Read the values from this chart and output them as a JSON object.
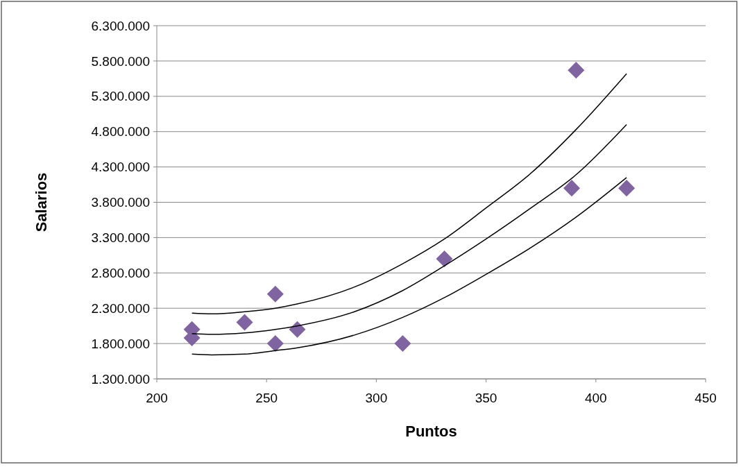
{
  "chart_data": {
    "type": "scatter",
    "xlabel": "Puntos",
    "ylabel": "Salarios",
    "xlim": [
      200,
      450
    ],
    "xticks": [
      200,
      250,
      300,
      350,
      400,
      450
    ],
    "ylim": [
      1300000,
      6300000
    ],
    "yticks": [
      {
        "value": 1300000,
        "label": "1.300.000"
      },
      {
        "value": 1800000,
        "label": "1.800.000"
      },
      {
        "value": 2300000,
        "label": "2.300.000"
      },
      {
        "value": 2800000,
        "label": "2.800.000"
      },
      {
        "value": 3300000,
        "label": "3.300.000"
      },
      {
        "value": 3800000,
        "label": "3.800.000"
      },
      {
        "value": 4300000,
        "label": "4.300.000"
      },
      {
        "value": 4800000,
        "label": "4.800.000"
      },
      {
        "value": 5300000,
        "label": "5.300.000"
      },
      {
        "value": 5800000,
        "label": "5.800.000"
      },
      {
        "value": 6300000,
        "label": "6.300.000"
      }
    ],
    "grid": "y",
    "series": [
      {
        "marker": "diamond",
        "color": "#8064a2",
        "x": [
          216,
          216,
          240,
          254,
          254,
          264,
          312,
          331,
          391,
          389,
          414
        ],
        "values": [
          2000000,
          1880000,
          2100000,
          2500000,
          1800000,
          2000000,
          1800000,
          3000000,
          5670000,
          4000000,
          4000000
        ]
      },
      {
        "type": "line",
        "color": "#000000",
        "x": [
          216,
          225,
          240,
          254,
          264,
          290,
          312,
          331,
          350,
          370,
          391,
          414
        ],
        "values": [
          2230000,
          2220000,
          2250000,
          2300000,
          2360000,
          2600000,
          2930000,
          3280000,
          3720000,
          4200000,
          4830000,
          5620000
        ]
      },
      {
        "type": "line",
        "color": "#000000",
        "x": [
          216,
          225,
          240,
          254,
          264,
          290,
          312,
          331,
          350,
          370,
          391,
          414
        ],
        "values": [
          1940000,
          1930000,
          1950000,
          2000000,
          2050000,
          2250000,
          2550000,
          2900000,
          3280000,
          3710000,
          4190000,
          4900000
        ]
      },
      {
        "type": "line",
        "color": "#000000",
        "x": [
          216,
          225,
          240,
          254,
          264,
          290,
          312,
          331,
          350,
          370,
          391,
          414
        ],
        "values": [
          1650000,
          1640000,
          1650000,
          1700000,
          1740000,
          1920000,
          2170000,
          2450000,
          2780000,
          3150000,
          3590000,
          4150000
        ]
      }
    ]
  }
}
